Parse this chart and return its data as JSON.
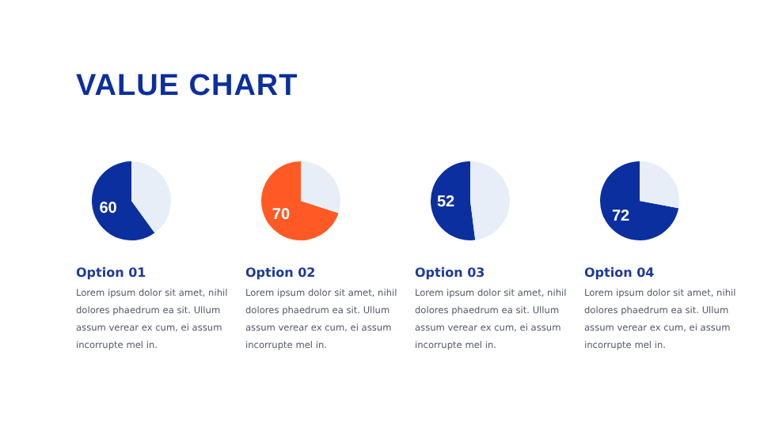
{
  "chart_data": [
    {
      "type": "other",
      "title": "VALUE CHART"
    },
    {
      "type": "pie",
      "title": "Option 01",
      "subtitle": "Lorem ipsum dolor sit amet, nihil dolores phaedrum ea sit. Ullum assum verear ex cum, ei assum incorrupte mel in.",
      "categories": [
        null,
        null
      ],
      "values": [
        60,
        40
      ],
      "colors": [
        "#0b2f9f",
        "#e7eef8"
      ],
      "value_labels": [
        "60",
        null
      ]
    },
    {
      "type": "pie",
      "title": "Option 02",
      "subtitle": "Lorem ipsum dolor sit amet, nihil dolores phaedrum ea sit. Ullum assum verear ex cum, ei assum incorrupte mel in.",
      "categories": [
        null,
        null
      ],
      "values": [
        70,
        30
      ],
      "colors": [
        "#ff5a26",
        "#e7eef8"
      ],
      "value_labels": [
        "70",
        null
      ]
    },
    {
      "type": "pie",
      "title": "Option 03",
      "subtitle": "Lorem ipsum dolor sit amet, nihil dolores phaedrum ea sit. Ullum assum verear ex cum, ei assum incorrupte mel in.",
      "categories": [
        null,
        null
      ],
      "values": [
        52,
        48
      ],
      "colors": [
        "#0b2f9f",
        "#e7eef8"
      ],
      "value_labels": [
        "52",
        null
      ]
    },
    {
      "type": "pie",
      "title": "Option 04",
      "subtitle": "Lorem ipsum dolor sit amet, nihil dolores phaedrum ea sit. Ullum assum verear ex cum, ei assum incorrupte mel in.",
      "categories": [
        null,
        null
      ],
      "values": [
        72,
        28
      ],
      "colors": [
        "#0b2f9f",
        "#e7eef8"
      ],
      "value_labels": [
        "72",
        null
      ]
    }
  ]
}
